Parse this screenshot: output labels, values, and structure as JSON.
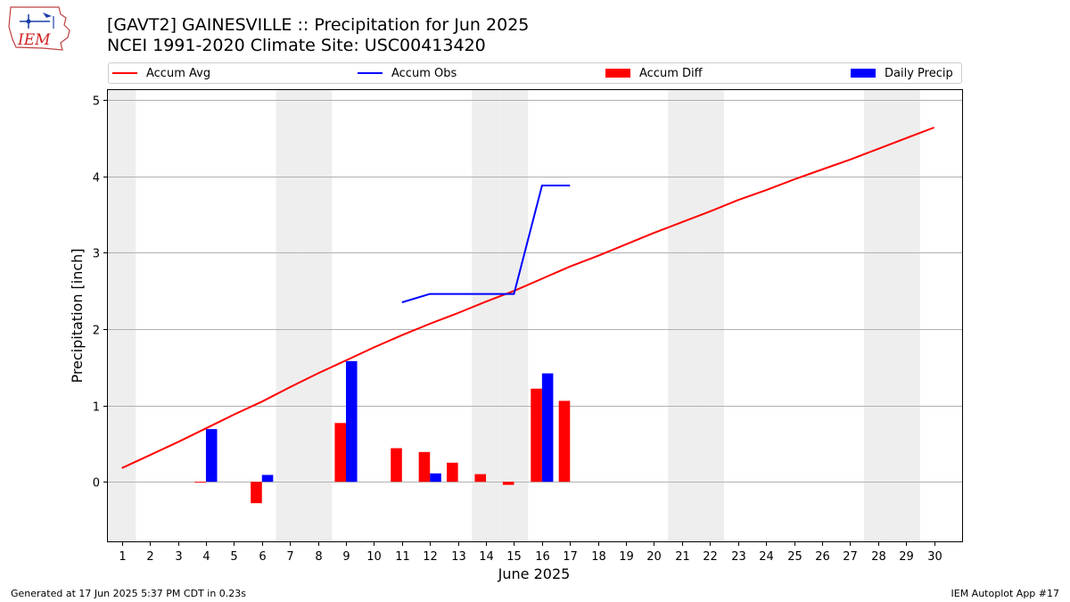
{
  "header": {
    "logo_text": "IEM",
    "title": "[GAVT2] GAINESVILLE :: Precipitation for Jun 2025",
    "subtitle": "NCEI 1991-2020 Climate Site: USC00413420"
  },
  "footer": {
    "left": "Generated at 17 Jun 2025 5:37 PM CDT in 0.23s",
    "right": "IEM Autoplot App #17"
  },
  "colors": {
    "accum_avg": "#ff0000",
    "accum_obs": "#0000ff",
    "accum_diff": "#ff0000",
    "daily_precip": "#0000ff",
    "weekend_shade": "#eeeeee",
    "grid": "#b0b0b0"
  },
  "chart_data": {
    "type": "bar",
    "xlabel": "June 2025",
    "ylabel": "Precipitation [inch]",
    "ylim": [
      -0.78,
      5.13
    ],
    "xlim": [
      0.5,
      31.0
    ],
    "yticks": [
      0,
      1,
      2,
      3,
      4,
      5
    ],
    "xticks": [
      1,
      2,
      3,
      4,
      5,
      6,
      7,
      8,
      9,
      10,
      11,
      12,
      13,
      14,
      15,
      16,
      17,
      18,
      19,
      20,
      21,
      22,
      23,
      24,
      25,
      26,
      27,
      28,
      29,
      30
    ],
    "grid": "horizontal",
    "legend_placement": "top",
    "weekend_days": [
      1,
      7,
      8,
      14,
      15,
      21,
      22,
      28,
      29
    ],
    "series": [
      {
        "name": "Accum Avg",
        "kind": "line",
        "x": [
          1,
          2,
          3,
          4,
          5,
          6,
          7,
          8,
          9,
          10,
          11,
          12,
          13,
          14,
          15,
          16,
          17,
          18,
          19,
          20,
          21,
          22,
          23,
          24,
          25,
          26,
          27,
          28,
          29,
          30
        ],
        "values": [
          0.18,
          0.35,
          0.52,
          0.7,
          0.88,
          1.05,
          1.24,
          1.42,
          1.59,
          1.76,
          1.92,
          2.07,
          2.21,
          2.36,
          2.5,
          2.66,
          2.82,
          2.96,
          3.11,
          3.26,
          3.4,
          3.54,
          3.69,
          3.82,
          3.96,
          4.09,
          4.22,
          4.36,
          4.5,
          4.64
        ]
      },
      {
        "name": "Accum Obs",
        "kind": "line",
        "x": [
          11,
          12,
          13,
          14,
          15,
          16,
          17
        ],
        "values": [
          2.35,
          2.46,
          2.46,
          2.46,
          2.46,
          3.88,
          3.88
        ]
      },
      {
        "name": "Accum Diff",
        "kind": "bar",
        "offset": -0.2,
        "x": [
          4,
          6,
          9,
          11,
          12,
          13,
          14,
          15,
          16,
          17
        ],
        "values": [
          -0.01,
          -0.28,
          0.77,
          0.44,
          0.39,
          0.25,
          0.1,
          -0.04,
          1.22,
          1.06
        ]
      },
      {
        "name": "Daily Precip",
        "kind": "bar",
        "offset": 0.2,
        "x": [
          4,
          6,
          9,
          12,
          16
        ],
        "values": [
          0.69,
          0.09,
          1.58,
          0.11,
          1.42
        ]
      }
    ]
  }
}
